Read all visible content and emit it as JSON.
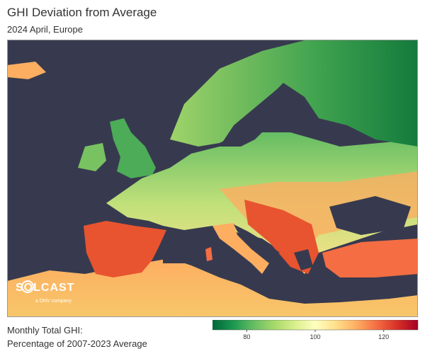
{
  "header": {
    "title": "GHI Deviation from Average",
    "subtitle": "2024 April, Europe"
  },
  "logo": {
    "name": "SOLCAST",
    "tagline": "a DNV company"
  },
  "legend": {
    "label_lines": [
      "Monthly Total GHI:",
      "Percentage of 2007-2023 Average"
    ],
    "range": [
      70,
      130
    ],
    "ticks": [
      80,
      100,
      120
    ],
    "colors": [
      "#006837",
      "#1a9850",
      "#66bd63",
      "#a6d96a",
      "#d9ef8b",
      "#ffffbf",
      "#fee08b",
      "#fdae61",
      "#f46d43",
      "#d73027",
      "#a50026"
    ]
  }
}
